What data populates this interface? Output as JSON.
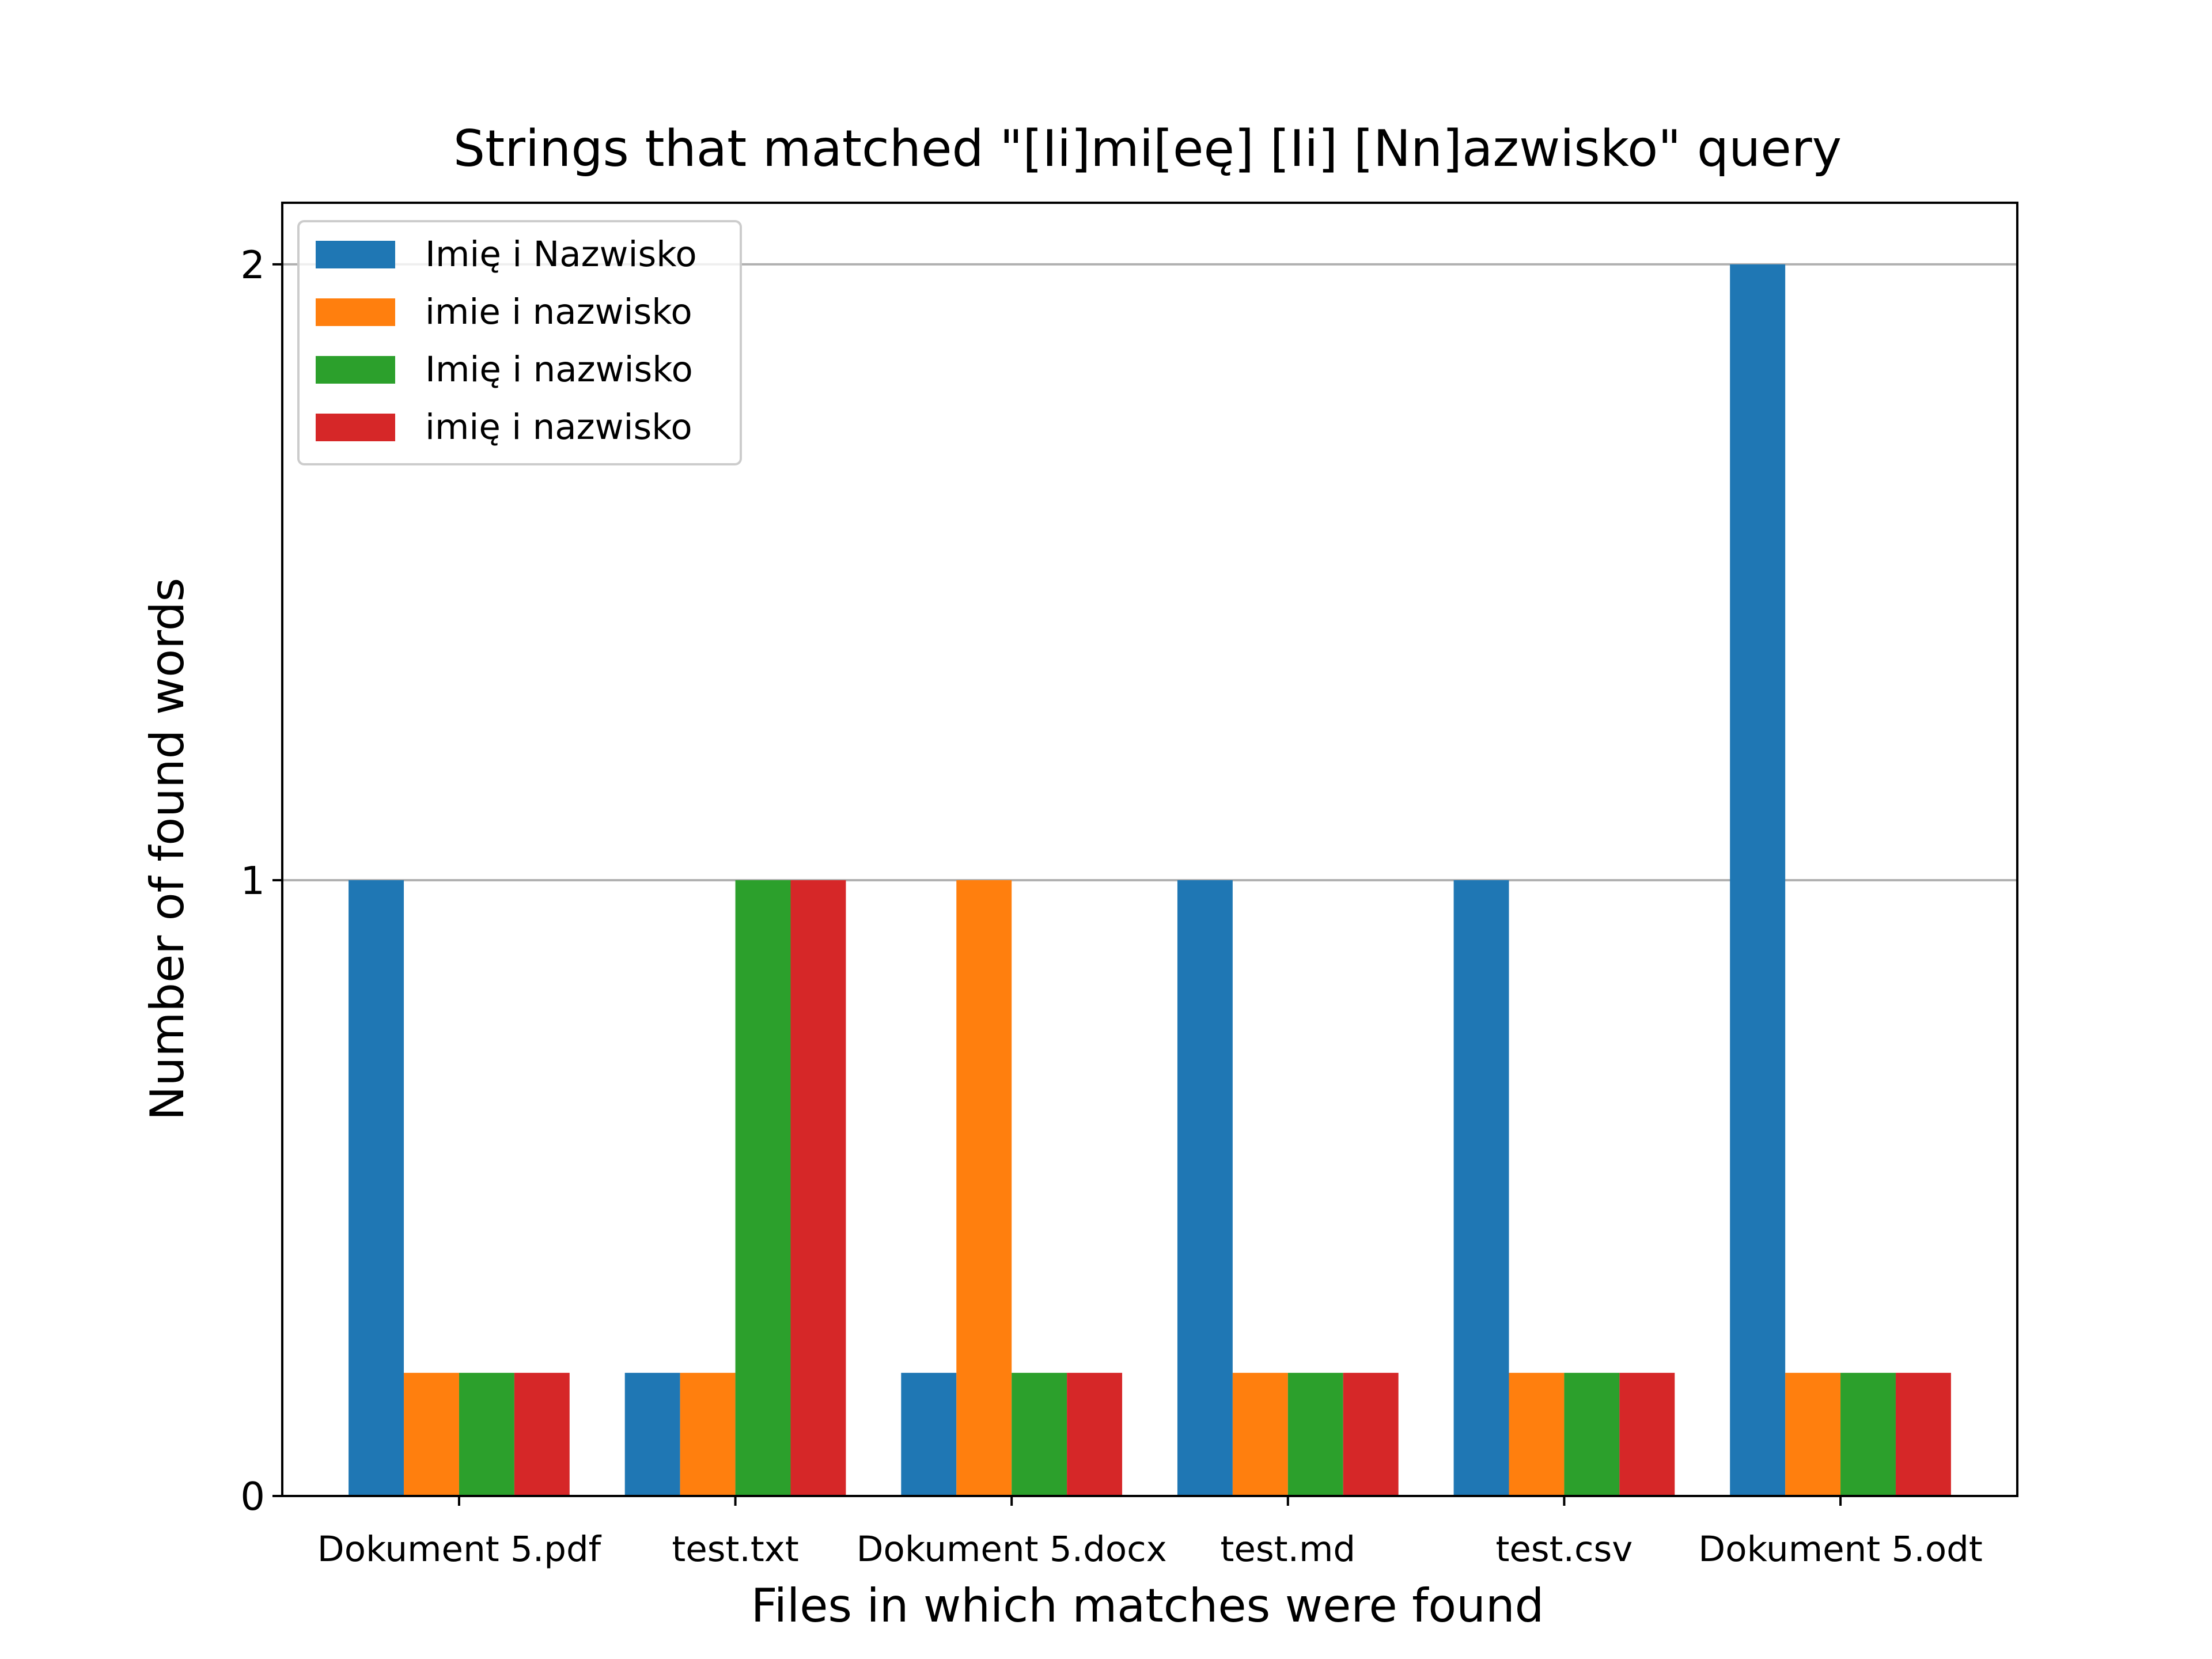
{
  "chart_data": {
    "type": "bar",
    "title": "Strings that matched \"[Ii]mi[eę] [Ii] [Nn]azwisko\" query",
    "xlabel": "Files in which matches were found",
    "ylabel": "Number of found words",
    "categories": [
      "Dokument 5.pdf",
      "test.txt",
      "Dokument 5.docx",
      "test.md",
      "test.csv",
      "Dokument 5.odt"
    ],
    "series": [
      {
        "name": "Imię i Nazwisko",
        "color": "#1f77b4",
        "values": [
          1,
          0.2,
          0.2,
          1,
          1,
          2
        ]
      },
      {
        "name": "imie i nazwisko",
        "color": "#ff7f0e",
        "values": [
          0.2,
          0.2,
          1,
          0.2,
          0.2,
          0.2
        ]
      },
      {
        "name": "Imię i nazwisko",
        "color": "#2ca02c",
        "values": [
          0.2,
          1,
          0.2,
          0.2,
          0.2,
          0.2
        ]
      },
      {
        "name": "imię i nazwisko",
        "color": "#d62728",
        "values": [
          0.2,
          1,
          0.2,
          0.2,
          0.2,
          0.2
        ]
      }
    ],
    "yticks": [
      0,
      1,
      2
    ],
    "ylim": [
      0,
      2.1
    ],
    "grid": "horizontal",
    "legend_position": "top-left"
  }
}
